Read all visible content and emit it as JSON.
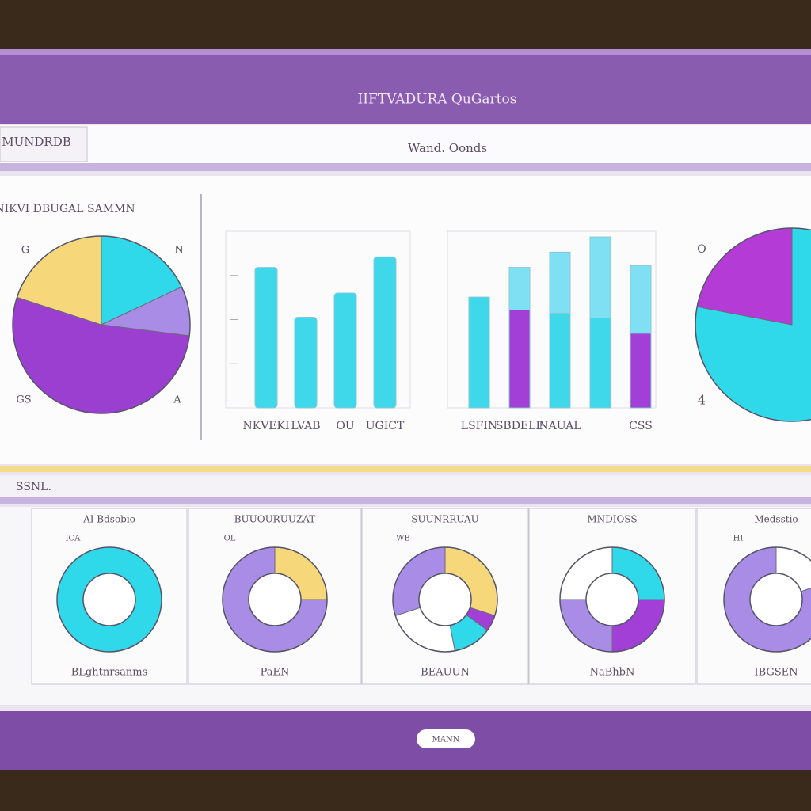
{
  "header": {
    "title": "IIFTVADURA QuGartos"
  },
  "toolbar": {
    "left": "MUNDRDB",
    "center": "Wand. Oonds"
  },
  "overview": {
    "title": "NIKVI DBUGAL SAMMN",
    "pie": {
      "type": "pie",
      "values": [
        18,
        9,
        53,
        20
      ],
      "colors": [
        "#2fd9ea",
        "#a98ce6",
        "#9a3fd0",
        "#f6d77a"
      ],
      "annotations": [
        "G",
        "N",
        "GS",
        "A"
      ]
    },
    "bars": {
      "type": "bar",
      "categories": [
        "NKVEKI",
        "LVAB",
        "OU",
        "UGICT"
      ],
      "values": [
        175,
        113,
        143,
        188
      ],
      "color": "#3fd8ea",
      "ylim": [
        0,
        220
      ]
    },
    "stacked": {
      "type": "stacked_bar",
      "categories": [
        "LSFIN",
        "SBDELF",
        "NAUAL",
        null,
        "CSS"
      ],
      "ylim": [
        0,
        220
      ],
      "series": [
        {
          "colors": [
            "#3fd8ea",
            "#a13fd6",
            "#3fd8ea",
            "#3fd8ea",
            "#a13fd6"
          ],
          "values": [
            138,
            122,
            118,
            112,
            93
          ]
        },
        {
          "colors": [
            "#7fe0f4",
            "#7fe0f4",
            "#7fe0f4",
            "#7fe0f4",
            "#7fe0f4"
          ],
          "values": [
            0,
            53,
            76,
            101,
            84
          ]
        }
      ]
    },
    "side_pie": {
      "type": "pie",
      "values": [
        78,
        22
      ],
      "colors": [
        "#2fd9ea",
        "#b43bd6"
      ],
      "annotations": [
        "O",
        "4"
      ]
    }
  },
  "section": {
    "title": "SSNL."
  },
  "cards": [
    {
      "title": "AI Bdsobio",
      "subtitle": "ICA",
      "footer": "BLghtnrsanms",
      "chart": {
        "type": "donut",
        "values": [
          100
        ],
        "colors": [
          "#2fd9ea"
        ]
      }
    },
    {
      "title": "BUUOURUUZAT",
      "subtitle": "OL",
      "footer": "PaEN",
      "chart": {
        "type": "donut",
        "values": [
          25,
          75
        ],
        "colors": [
          "#f6d77a",
          "#a98ce6"
        ]
      }
    },
    {
      "title": "SUUNRRUAU",
      "subtitle": "WB",
      "footer": "BEAUUN",
      "chart": {
        "type": "donut",
        "values": [
          30,
          5,
          12,
          23,
          30
        ],
        "colors": [
          "#f6d77a",
          "#a13fd6",
          "#2fd9ea",
          "#ffffff",
          "#a98ce6"
        ]
      }
    },
    {
      "title": "MNDIOSS",
      "footer": "NaBhbN",
      "chart": {
        "type": "donut",
        "values": [
          25,
          25,
          25,
          25
        ],
        "colors": [
          "#2fd9ea",
          "#a13fd6",
          "#a98ce6",
          "#ffffff"
        ]
      }
    },
    {
      "title": "Medsstio",
      "subtitle": "HI",
      "footer": "IBGSEN",
      "chart": {
        "type": "donut",
        "values": [
          20,
          80
        ],
        "colors": [
          "#ffffff",
          "#a98ce6"
        ]
      }
    }
  ],
  "footer": {
    "button": "MANN"
  }
}
